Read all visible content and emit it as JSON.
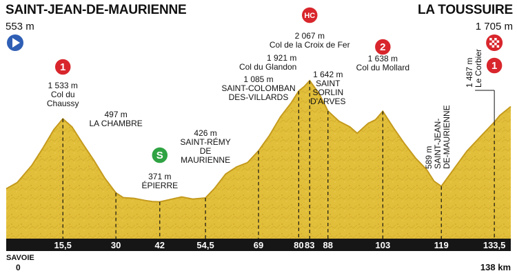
{
  "header": {
    "start_name": "SAINT-JEAN-DE-MAURIENNE",
    "start_alt": "553 m",
    "finish_name": "LA TOUSSUIRE",
    "finish_alt": "1 705 m"
  },
  "colors": {
    "terrain": "#e2bf3a",
    "terrain_dark": "#c49a1d",
    "axis_bar": "#161616",
    "climb_red": "#d8262c",
    "start_blue": "#2f5fb5",
    "sprint_green": "#2fa343"
  },
  "chart_data": {
    "type": "area",
    "x_unit": "km",
    "y_unit": "m",
    "x_range": [
      0,
      138
    ],
    "total_label": "138 km",
    "start_label": "0",
    "region_label": "SAVOIE",
    "profile": [
      [
        0,
        553
      ],
      [
        3,
        640
      ],
      [
        7,
        880
      ],
      [
        10,
        1120
      ],
      [
        13,
        1380
      ],
      [
        15.5,
        1533
      ],
      [
        18,
        1420
      ],
      [
        21,
        1180
      ],
      [
        24,
        950
      ],
      [
        27,
        700
      ],
      [
        30,
        497
      ],
      [
        32,
        430
      ],
      [
        35,
        420
      ],
      [
        38,
        390
      ],
      [
        40,
        375
      ],
      [
        42,
        371
      ],
      [
        45,
        405
      ],
      [
        48,
        440
      ],
      [
        51,
        410
      ],
      [
        54.5,
        426
      ],
      [
        57,
        560
      ],
      [
        60,
        760
      ],
      [
        63,
        860
      ],
      [
        66,
        920
      ],
      [
        69,
        1085
      ],
      [
        72,
        1300
      ],
      [
        75,
        1560
      ],
      [
        78,
        1760
      ],
      [
        80,
        1921
      ],
      [
        81.5,
        1985
      ],
      [
        83,
        2067
      ],
      [
        85.5,
        1890
      ],
      [
        88,
        1642
      ],
      [
        91,
        1500
      ],
      [
        94,
        1420
      ],
      [
        96,
        1330
      ],
      [
        99,
        1470
      ],
      [
        101,
        1520
      ],
      [
        103,
        1638
      ],
      [
        106,
        1400
      ],
      [
        109,
        1180
      ],
      [
        112,
        980
      ],
      [
        115,
        820
      ],
      [
        117,
        660
      ],
      [
        119,
        589
      ],
      [
        122,
        800
      ],
      [
        126,
        1080
      ],
      [
        130,
        1300
      ],
      [
        133.5,
        1487
      ],
      [
        135,
        1580
      ],
      [
        138,
        1705
      ]
    ],
    "x_ticks": [
      {
        "km": 15.5,
        "label": "15,5"
      },
      {
        "km": 30,
        "label": "30"
      },
      {
        "km": 42,
        "label": "42"
      },
      {
        "km": 54.5,
        "label": "54,5"
      },
      {
        "km": 69,
        "label": "69"
      },
      {
        "km": 80,
        "label": "80"
      },
      {
        "km": 83,
        "label": "83"
      },
      {
        "km": 88,
        "label": "88"
      },
      {
        "km": 103,
        "label": "103"
      },
      {
        "km": 119,
        "label": "119"
      },
      {
        "km": 133.5,
        "label": "133,5"
      }
    ],
    "waypoints": [
      {
        "km": 15.5,
        "alt": 1533,
        "lines": [
          "1 533 m",
          "Col du",
          "Chaussy"
        ],
        "badge": "1",
        "badge_kind": "climb"
      },
      {
        "km": 30,
        "alt": 497,
        "lines": [
          "497 m",
          "LA CHAMBRE"
        ]
      },
      {
        "km": 42,
        "alt": 371,
        "lines": [
          "371 m",
          "ÉPIERRE"
        ],
        "badge": "S",
        "badge_kind": "sprint"
      },
      {
        "km": 54.5,
        "alt": 426,
        "lines": [
          "426 m",
          "SAINT-RÉMY",
          "DE",
          "MAURIENNE"
        ]
      },
      {
        "km": 69,
        "alt": 1085,
        "lines": [
          "1 085 m",
          "SAINT-COLOMBAN",
          "DES-VILLARDS"
        ]
      },
      {
        "km": 80,
        "alt": 1921,
        "lines": [
          "1 921 m",
          "Col du Glandon"
        ]
      },
      {
        "km": 83,
        "alt": 2067,
        "lines": [
          "2 067 m",
          "Col de la Croix de Fer"
        ],
        "badge": "HC",
        "badge_kind": "climb"
      },
      {
        "km": 88,
        "alt": 1642,
        "lines": [
          "1 642 m",
          "SAINT",
          "SORLIN",
          "D'ARVES"
        ]
      },
      {
        "km": 103,
        "alt": 1638,
        "lines": [
          "1 638 m",
          "Col du Mollard"
        ],
        "badge": "2",
        "badge_kind": "climb"
      },
      {
        "km": 119,
        "alt": 589,
        "lines": [
          "589 m",
          "SAINT-JEAN-",
          "DE-MAURIENNE"
        ],
        "rotated": true
      },
      {
        "km": 133.5,
        "alt": 1487,
        "lines": [
          "1 487 m",
          "Le Corbier"
        ],
        "rotated": true,
        "badge": "1",
        "badge_kind": "climb"
      }
    ]
  },
  "icons": {
    "start": "play-icon",
    "finish": "checkered-flag-icon"
  }
}
